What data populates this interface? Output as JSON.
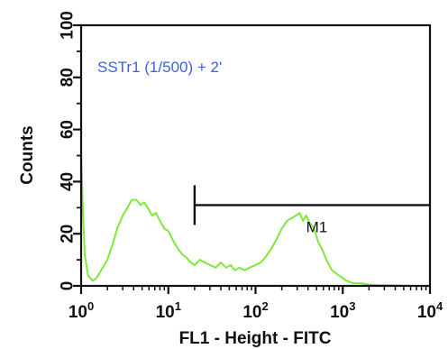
{
  "chart_data": {
    "type": "line",
    "xlabel": "FL1 - Height - FITC",
    "ylabel": "Counts",
    "x_scale": "log",
    "xlim": [
      1,
      10000
    ],
    "ylim": [
      0,
      100
    ],
    "x_ticks": [
      {
        "base": "10",
        "exp": "0"
      },
      {
        "base": "10",
        "exp": "1"
      },
      {
        "base": "10",
        "exp": "2"
      },
      {
        "base": "10",
        "exp": "3"
      },
      {
        "base": "10",
        "exp": "4"
      }
    ],
    "y_ticks": [
      "0",
      "20",
      "40",
      "60",
      "80",
      "100"
    ],
    "annotation": "SSTr1 (1/500) + 2'",
    "marker": {
      "label": "M1",
      "x_start": 20,
      "x_end": 10000,
      "y": 31
    },
    "series": [
      {
        "color": "#7ee83f",
        "x": [
          1.0,
          1.05,
          1.1,
          1.2,
          1.35,
          1.5,
          1.7,
          2.0,
          2.3,
          2.6,
          3.0,
          3.4,
          3.8,
          4.3,
          4.8,
          5.3,
          5.8,
          6.5,
          7.2,
          8.0,
          9.0,
          10.0,
          11.5,
          13.0,
          14.5,
          16.0,
          18.0,
          20.0,
          23.0,
          26.0,
          30.0,
          35.0,
          40.0,
          46.0,
          52.0,
          58.0,
          65.0,
          75.0,
          85.0,
          100.0,
          115.0,
          130.0,
          150.0,
          175.0,
          200.0,
          230.0,
          260.0,
          290.0,
          320.0,
          350.0,
          380.0,
          420.0,
          470.0,
          520.0,
          580.0,
          650.0,
          750.0,
          900.0,
          1100.0,
          1300.0,
          1600.0,
          2000.0,
          2500.0,
          3500.0,
          5000.0,
          7000.0,
          10000.0
        ],
        "values": [
          51,
          28,
          12,
          4,
          2,
          3,
          6,
          10,
          16,
          22,
          27,
          30,
          33,
          33,
          31,
          32,
          30,
          27,
          28,
          25,
          22,
          21,
          17,
          14,
          12,
          11,
          9,
          8,
          10,
          9,
          8,
          7,
          9,
          7,
          8,
          6,
          7,
          6,
          7,
          8,
          9,
          11,
          14,
          18,
          22,
          25,
          26,
          27,
          28,
          25,
          27,
          24,
          22,
          17,
          14,
          10,
          6,
          4,
          2,
          1,
          1,
          0.5,
          0.3,
          0.2,
          0.1,
          0,
          0
        ]
      }
    ]
  }
}
